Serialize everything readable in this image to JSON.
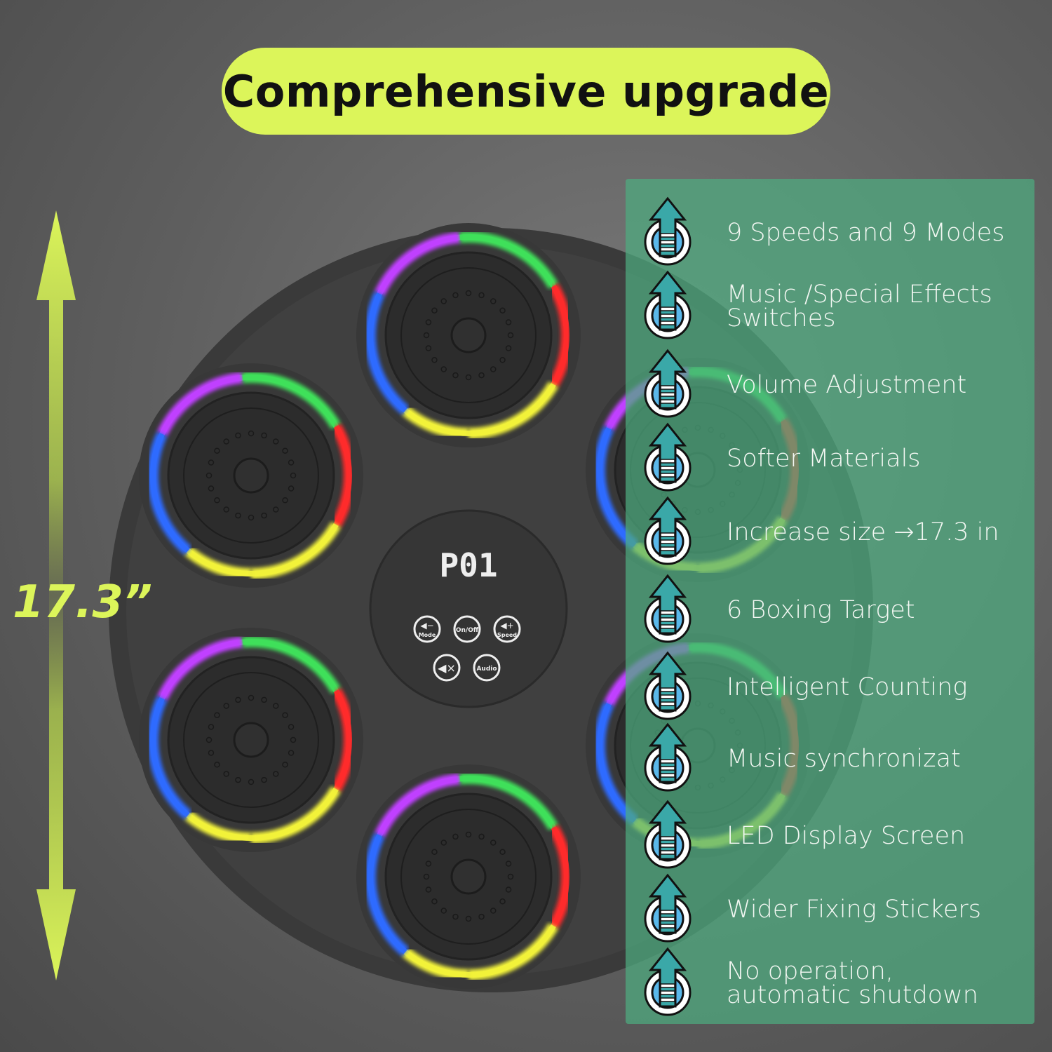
{
  "title": "Comprehensive upgrade",
  "size_label": "17.3”",
  "display": {
    "readout": "P01"
  },
  "control_buttons": [
    {
      "label": "Mode",
      "icon": "volume-down-icon"
    },
    {
      "label": "On/Off"
    },
    {
      "label": "Speed",
      "icon": "volume-up-icon"
    },
    {
      "label": "",
      "icon": "mute-icon"
    },
    {
      "label": "Audio"
    }
  ],
  "features": [
    "9 Speeds and 9 Modes",
    "Music /Special Effects Switches",
    "Volume Adjustment",
    "Softer Materials",
    "Increase size →17.3 in",
    "6 Boxing Target",
    "Intelligent Counting",
    "Music synchronizat",
    "LED Display Screen",
    "Wider Fixing Stickers",
    "No operation, automatic shutdown"
  ],
  "colors": {
    "accent": "#dcf55a",
    "panel": "#4eac80",
    "led_green": "#3fe05a",
    "led_red": "#ff2b2b",
    "led_yellow": "#f2f23a",
    "led_blue": "#2f6bff",
    "led_purple": "#c040ff"
  }
}
